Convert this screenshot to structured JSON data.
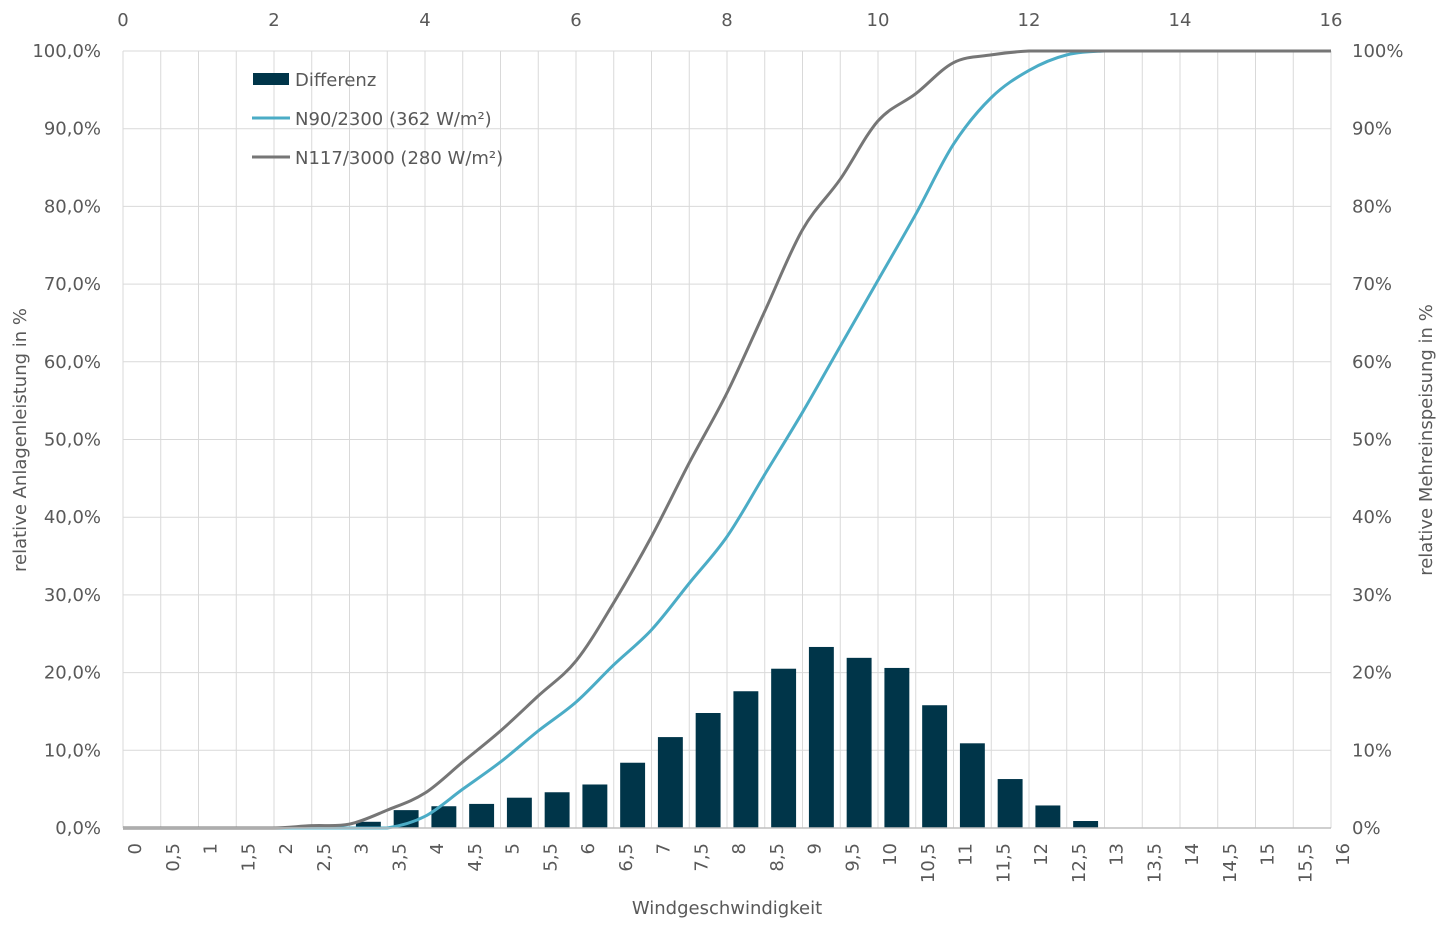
{
  "chart_data": {
    "type": "bar+line",
    "title": "",
    "xlabel": "Windgeschwindigkeit",
    "ylabel_left": "relative Anlagenleistung in %",
    "ylabel_right": "relative Mehreinspeisung in %",
    "categories": [
      "0",
      "0,5",
      "1",
      "1,5",
      "2",
      "2,5",
      "3",
      "3,5",
      "4",
      "4,5",
      "5",
      "5,5",
      "6",
      "6,5",
      "7",
      "7,5",
      "8",
      "8,5",
      "9",
      "9,5",
      "10",
      "10,5",
      "11",
      "11,5",
      "12",
      "12,5",
      "13",
      "13,5",
      "14",
      "14,5",
      "15",
      "15,5",
      "16"
    ],
    "top_axis": {
      "range": [
        0,
        16
      ],
      "ticks": [
        "0",
        "2",
        "4",
        "6",
        "8",
        "10",
        "12",
        "14",
        "16"
      ]
    },
    "y_left": {
      "range": [
        0,
        100
      ],
      "ticks": [
        "0,0%",
        "10,0%",
        "20,0%",
        "30,0%",
        "40,0%",
        "50,0%",
        "60,0%",
        "70,0%",
        "80,0%",
        "90,0%",
        "100,0%"
      ]
    },
    "y_right": {
      "range": [
        0,
        100
      ],
      "ticks": [
        "0%",
        "10%",
        "20%",
        "30%",
        "40%",
        "50%",
        "60%",
        "70%",
        "80%",
        "90%",
        "100%"
      ]
    },
    "grid": true,
    "legend_position": "top-left",
    "series": [
      {
        "name": "Differenz",
        "kind": "bar",
        "axis": "right",
        "color": "#003549",
        "values": [
          0,
          0,
          0,
          0,
          0,
          0,
          0.8,
          2.3,
          2.8,
          3.1,
          3.9,
          4.6,
          5.6,
          8.4,
          11.7,
          14.8,
          17.6,
          20.5,
          23.3,
          21.9,
          20.6,
          15.8,
          10.9,
          6.3,
          2.9,
          0.9,
          0,
          0,
          0,
          0,
          0,
          0,
          0
        ]
      },
      {
        "name": "N90/2300 (362 W/m²)",
        "kind": "line",
        "axis": "left",
        "color": "#4bacc6",
        "values": [
          0,
          0,
          0,
          0,
          0,
          0,
          0,
          0,
          1.5,
          5,
          8.5,
          12.5,
          16.2,
          21,
          25.5,
          31.5,
          37.5,
          45.5,
          53.5,
          62,
          70.5,
          79,
          88,
          94,
          97.5,
          99.5,
          100,
          100,
          100,
          100,
          100,
          100,
          100
        ]
      },
      {
        "name": "N117/3000 (280 W/m²)",
        "kind": "line",
        "axis": "left",
        "color": "#767676",
        "values": [
          0,
          0,
          0,
          0,
          0,
          0.3,
          0.5,
          2.3,
          4.5,
          8.5,
          12.5,
          17,
          21.5,
          29,
          37.5,
          47,
          56,
          66.5,
          77,
          83.5,
          91,
          94.5,
          98.5,
          99.5,
          100,
          100,
          100,
          100,
          100,
          100,
          100,
          100,
          100
        ]
      }
    ]
  }
}
